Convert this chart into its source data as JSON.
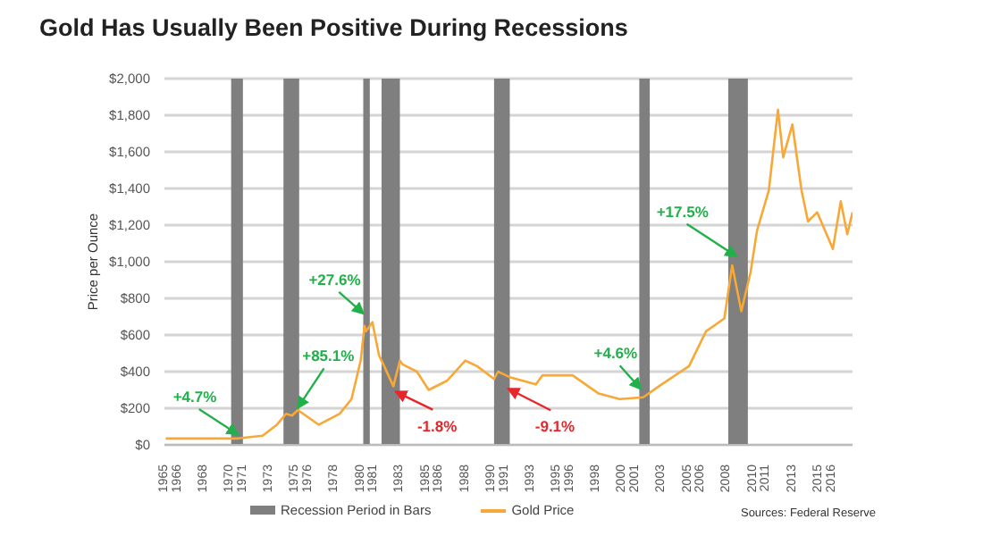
{
  "chart_data": {
    "type": "line",
    "title": "Gold Has Usually Been Positive During Recessions",
    "ylabel": "Price per Ounce",
    "xlim": [
      1965,
      2017.6
    ],
    "ylim": [
      0,
      2000
    ],
    "yticks": [
      {
        "value": 0,
        "label": "$0"
      },
      {
        "value": 200,
        "label": "$200"
      },
      {
        "value": 400,
        "label": "$400"
      },
      {
        "value": 600,
        "label": "$600"
      },
      {
        "value": 800,
        "label": "$800"
      },
      {
        "value": 1000,
        "label": "$1,000"
      },
      {
        "value": 1200,
        "label": "$1,200"
      },
      {
        "value": 1400,
        "label": "$1,400"
      },
      {
        "value": 1600,
        "label": "$1,600"
      },
      {
        "value": 1800,
        "label": "$1,800"
      },
      {
        "value": 2000,
        "label": "$2,000"
      }
    ],
    "xticks": [
      1965,
      1966,
      1968,
      1970,
      1971,
      1973,
      1975,
      1976,
      1978,
      1980,
      1981,
      1983,
      1985,
      1986,
      1988,
      1990,
      1991,
      1993,
      1995,
      1996,
      1998,
      2000,
      2001,
      2003,
      2005,
      2006,
      2008,
      2010,
      2011,
      2013,
      2015,
      2016
    ],
    "series": [
      {
        "name": "Gold Price",
        "color": "#f7a836",
        "x": [
          1965.1,
          1970.6,
          1972.5,
          1973.6,
          1974.3,
          1974.75,
          1975.2,
          1976.8,
          1978.4,
          1979.3,
          1980.0,
          1980.3,
          1980.4,
          1980.9,
          1981.4,
          1981.8,
          1982.5,
          1983.0,
          1983.2,
          1984.3,
          1985.2,
          1986.6,
          1988.0,
          1988.9,
          1990.2,
          1990.5,
          1991.4,
          1993.4,
          1993.9,
          1996.2,
          1998.2,
          1999.8,
          2001.6,
          2003.0,
          2005.1,
          2006.4,
          2007.8,
          2008.4,
          2009.1,
          2009.8,
          2010.3,
          2011.2,
          2011.9,
          2012.3,
          2013.0,
          2013.7,
          2014.2,
          2014.9,
          2016.1,
          2016.7,
          2017.2,
          2017.6
        ],
        "values": [
          35,
          35,
          50,
          110,
          170,
          160,
          190,
          110,
          170,
          250,
          460,
          650,
          620,
          670,
          490,
          430,
          320,
          460,
          440,
          400,
          300,
          350,
          460,
          430,
          360,
          400,
          370,
          330,
          380,
          380,
          280,
          250,
          260,
          330,
          430,
          620,
          690,
          980,
          730,
          940,
          1170,
          1390,
          1830,
          1570,
          1750,
          1390,
          1220,
          1270,
          1070,
          1330,
          1150,
          1270
        ]
      }
    ],
    "bands": [
      {
        "axis": "x",
        "from": 1970.1,
        "to": 1971.0,
        "color": "#7f7f7f",
        "label": "Recession Period in Bars"
      },
      {
        "axis": "x",
        "from": 1974.1,
        "to": 1975.3,
        "color": "#7f7f7f"
      },
      {
        "axis": "x",
        "from": 1980.2,
        "to": 1980.7,
        "color": "#7f7f7f"
      },
      {
        "axis": "x",
        "from": 1981.6,
        "to": 1983.0,
        "color": "#7f7f7f"
      },
      {
        "axis": "x",
        "from": 1990.2,
        "to": 1991.4,
        "color": "#7f7f7f"
      },
      {
        "axis": "x",
        "from": 2001.3,
        "to": 2002.1,
        "color": "#7f7f7f"
      },
      {
        "axis": "x",
        "from": 2008.1,
        "to": 2009.6,
        "color": "#7f7f7f"
      }
    ],
    "annotations": [
      {
        "text": "+4.7%",
        "x": 1970.6,
        "y": 58
      },
      {
        "text": "+85.1%",
        "x": 1975.2,
        "y": 203
      },
      {
        "text": "+27.6%",
        "x": 1980.2,
        "y": 718
      },
      {
        "text": "-1.8%",
        "x": 1982.7,
        "y": 290
      },
      {
        "text": "-9.1%",
        "x": 1991.3,
        "y": 306
      },
      {
        "text": "+4.6%",
        "x": 2001.4,
        "y": 306
      },
      {
        "text": "+17.5%",
        "x": 2008.7,
        "y": 1031
      },
      "Sources: Federal Reserve"
    ],
    "grid": "y",
    "legend": "bottom",
    "marker": "none",
    "line_style": "solid"
  }
}
